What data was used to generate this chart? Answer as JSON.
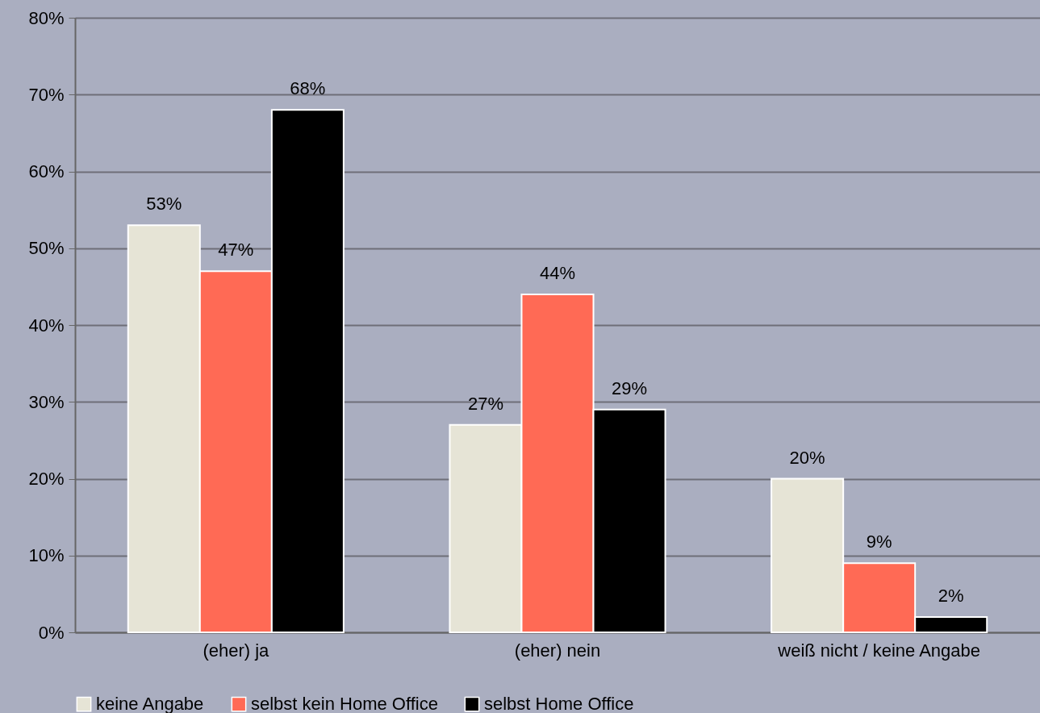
{
  "chart_data": {
    "type": "bar",
    "categories": [
      "(eher) ja",
      "(eher) nein",
      "weiß nicht / keine Angabe"
    ],
    "series": [
      {
        "name": "keine Angabe",
        "color": "#e6e4d6",
        "values": [
          53,
          27,
          20
        ],
        "value_labels": [
          "53%",
          "27%",
          "20%"
        ]
      },
      {
        "name": "selbst kein Home Office",
        "color": "#ff6a55",
        "values": [
          47,
          44,
          9
        ],
        "value_labels": [
          "47%",
          "44%",
          "9%"
        ]
      },
      {
        "name": "selbst Home Office",
        "color": "#000000",
        "values": [
          68,
          29,
          2
        ],
        "value_labels": [
          "68%",
          "29%",
          "2%"
        ]
      }
    ],
    "ylim": [
      0,
      80
    ],
    "yticks": [
      {
        "value": 0,
        "label": "0%"
      },
      {
        "value": 10,
        "label": "10%"
      },
      {
        "value": 20,
        "label": "20%"
      },
      {
        "value": 30,
        "label": "30%"
      },
      {
        "value": 40,
        "label": "40%"
      },
      {
        "value": 50,
        "label": "50%"
      },
      {
        "value": 60,
        "label": "60%"
      },
      {
        "value": 70,
        "label": "70%"
      },
      {
        "value": 80,
        "label": "80%"
      }
    ],
    "grid": "y",
    "legend": "bottom"
  }
}
